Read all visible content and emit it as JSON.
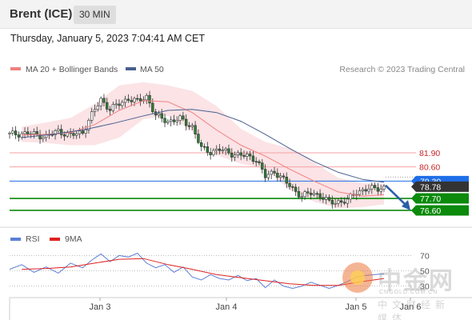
{
  "header": {
    "symbol": "Brent (ICE)",
    "timeframe": "30 MIN",
    "timestamp": "Thursday, January 5, 2023 7:04:41 AM CET"
  },
  "legend": {
    "ma20_label": "MA 20 + Bollinger Bands",
    "ma50_label": "MA 50",
    "copyright": "Research © 2023 Trading Central",
    "rsi_label": "RSI",
    "rsi_ma_label": "9MA"
  },
  "colors": {
    "ma20": "#f08080",
    "ma50": "#4a5f8f",
    "bollinger_band": "#fbe3e6",
    "candle_up": "#ffffff",
    "candle_down": "#2e7d32",
    "level_resistance": "#f4a3a3",
    "level_pivot": "#1e6ee8",
    "level_support": "#0b8a0b",
    "price_tag": "#333333",
    "rsi": "#5b7fd6",
    "rsi_ma": "#e02020",
    "arrow": "#2b5ea7"
  },
  "watermark": {
    "name_cn": "中金网",
    "url": "CNGOLD.COM.CN",
    "sub_cn": "中文财经新媒体"
  },
  "chart_data": [
    {
      "type": "candlestick",
      "title": "Brent (ICE)",
      "x_labels": [
        "Jan 3",
        "Jan 4",
        "Jan 5",
        "Jan 6"
      ],
      "ylim": [
        75.2,
        88.6
      ],
      "current_price": 78.78,
      "price_tags": [
        {
          "label": "81.90",
          "value": 81.9,
          "type": "resistance"
        },
        {
          "label": "80.60",
          "value": 80.6,
          "type": "resistance"
        },
        {
          "label": "79.30",
          "value": 79.3,
          "type": "pivot"
        },
        {
          "label": "78.78",
          "value": 78.78,
          "type": "last"
        },
        {
          "label": "77.70",
          "value": 77.7,
          "type": "support"
        },
        {
          "label": "76.60",
          "value": 76.6,
          "type": "support"
        }
      ],
      "forecast_arrow": {
        "from": 78.9,
        "to": 76.75
      },
      "close_path": [
        [
          0,
          83.6
        ],
        [
          6,
          83.7
        ],
        [
          12,
          83.4
        ],
        [
          16,
          83.9
        ],
        [
          20,
          83.5
        ],
        [
          24,
          83.8
        ],
        [
          27,
          85.4
        ],
        [
          30,
          86.8
        ],
        [
          33,
          85.9
        ],
        [
          36,
          86.4
        ],
        [
          39,
          86.9
        ],
        [
          42,
          86.6
        ],
        [
          45,
          87.1
        ],
        [
          48,
          85.3
        ],
        [
          52,
          84.8
        ],
        [
          56,
          85.0
        ],
        [
          60,
          84.3
        ],
        [
          63,
          82.3
        ],
        [
          66,
          82.0
        ],
        [
          69,
          82.2
        ],
        [
          72,
          81.9
        ],
        [
          75,
          81.7
        ],
        [
          78,
          81.6
        ],
        [
          81,
          81.3
        ],
        [
          84,
          79.7
        ],
        [
          87,
          80.2
        ],
        [
          90,
          79.4
        ],
        [
          93,
          78.6
        ],
        [
          96,
          77.9
        ],
        [
          99,
          78.2
        ],
        [
          102,
          78.0
        ],
        [
          105,
          77.3
        ],
        [
          108,
          77.4
        ],
        [
          111,
          77.5
        ],
        [
          114,
          78.3
        ],
        [
          117,
          78.55
        ],
        [
          120,
          78.6
        ],
        [
          123,
          78.7
        ]
      ],
      "ma20": [
        [
          4,
          83.55
        ],
        [
          12,
          83.6
        ],
        [
          20,
          83.75
        ],
        [
          28,
          84.5
        ],
        [
          36,
          85.8
        ],
        [
          44,
          86.7
        ],
        [
          52,
          86.6
        ],
        [
          60,
          85.6
        ],
        [
          68,
          84.0
        ],
        [
          76,
          82.6
        ],
        [
          84,
          81.6
        ],
        [
          92,
          80.4
        ],
        [
          100,
          79.3
        ],
        [
          108,
          78.3
        ],
        [
          116,
          77.9
        ],
        [
          123,
          78.05
        ]
      ],
      "ma50": [
        [
          4,
          83.3
        ],
        [
          14,
          83.6
        ],
        [
          24,
          84.0
        ],
        [
          34,
          84.6
        ],
        [
          44,
          85.3
        ],
        [
          52,
          85.8
        ],
        [
          60,
          85.9
        ],
        [
          68,
          85.6
        ],
        [
          76,
          84.8
        ],
        [
          84,
          83.6
        ],
        [
          92,
          82.3
        ],
        [
          100,
          81.1
        ],
        [
          108,
          80.1
        ],
        [
          116,
          79.45
        ],
        [
          123,
          79.2
        ]
      ],
      "bb_upper": [
        [
          4,
          84.3
        ],
        [
          12,
          84.7
        ],
        [
          20,
          85.1
        ],
        [
          28,
          86.4
        ],
        [
          36,
          88.1
        ],
        [
          44,
          88.4
        ],
        [
          52,
          88.1
        ],
        [
          60,
          87.6
        ],
        [
          68,
          86.2
        ],
        [
          76,
          84.1
        ],
        [
          84,
          82.9
        ],
        [
          92,
          82.3
        ],
        [
          100,
          81.0
        ],
        [
          108,
          79.6
        ],
        [
          116,
          79.1
        ],
        [
          123,
          79.0
        ]
      ],
      "bb_lower": [
        [
          4,
          82.9
        ],
        [
          12,
          82.8
        ],
        [
          20,
          82.6
        ],
        [
          28,
          82.6
        ],
        [
          36,
          83.3
        ],
        [
          44,
          85.0
        ],
        [
          52,
          85.3
        ],
        [
          60,
          83.9
        ],
        [
          68,
          81.7
        ],
        [
          76,
          80.9
        ],
        [
          84,
          80.4
        ],
        [
          92,
          78.5
        ],
        [
          100,
          77.4
        ],
        [
          108,
          76.8
        ],
        [
          116,
          76.9
        ],
        [
          123,
          77.15
        ]
      ]
    },
    {
      "type": "line",
      "title": "RSI",
      "ylim": [
        15,
        85
      ],
      "levels": [
        {
          "label": "70",
          "value": 70
        },
        {
          "label": "50",
          "value": 50
        },
        {
          "label": "30",
          "value": 30
        }
      ],
      "series": [
        {
          "name": "RSI",
          "points": [
            [
              0,
              52
            ],
            [
              4,
              58
            ],
            [
              8,
              48
            ],
            [
              12,
              55
            ],
            [
              16,
              47
            ],
            [
              20,
              60
            ],
            [
              24,
              54
            ],
            [
              27,
              64
            ],
            [
              30,
              72
            ],
            [
              33,
              62
            ],
            [
              36,
              70
            ],
            [
              39,
              68
            ],
            [
              42,
              73
            ],
            [
              45,
              60
            ],
            [
              48,
              54
            ],
            [
              51,
              58
            ],
            [
              54,
              48
            ],
            [
              57,
              55
            ],
            [
              60,
              42
            ],
            [
              63,
              38
            ],
            [
              66,
              45
            ],
            [
              69,
              40
            ],
            [
              72,
              38
            ],
            [
              75,
              44
            ],
            [
              78,
              37
            ],
            [
              81,
              40
            ],
            [
              84,
              28
            ],
            [
              87,
              38
            ],
            [
              90,
              30
            ],
            [
              93,
              27
            ],
            [
              96,
              30
            ],
            [
              99,
              35
            ],
            [
              102,
              31
            ],
            [
              105,
              27
            ],
            [
              108,
              31
            ],
            [
              111,
              36
            ],
            [
              114,
              42
            ],
            [
              117,
              44
            ],
            [
              120,
              45
            ],
            [
              123,
              46
            ]
          ]
        },
        {
          "name": "9MA",
          "points": [
            [
              4,
              52
            ],
            [
              12,
              53
            ],
            [
              20,
              55
            ],
            [
              28,
              60
            ],
            [
              36,
              65
            ],
            [
              44,
              66
            ],
            [
              52,
              58
            ],
            [
              60,
              52
            ],
            [
              68,
              45
            ],
            [
              76,
              41
            ],
            [
              84,
              37
            ],
            [
              92,
              33
            ],
            [
              100,
              31
            ],
            [
              108,
              31
            ],
            [
              116,
              36
            ],
            [
              123,
              40
            ]
          ]
        }
      ]
    }
  ]
}
